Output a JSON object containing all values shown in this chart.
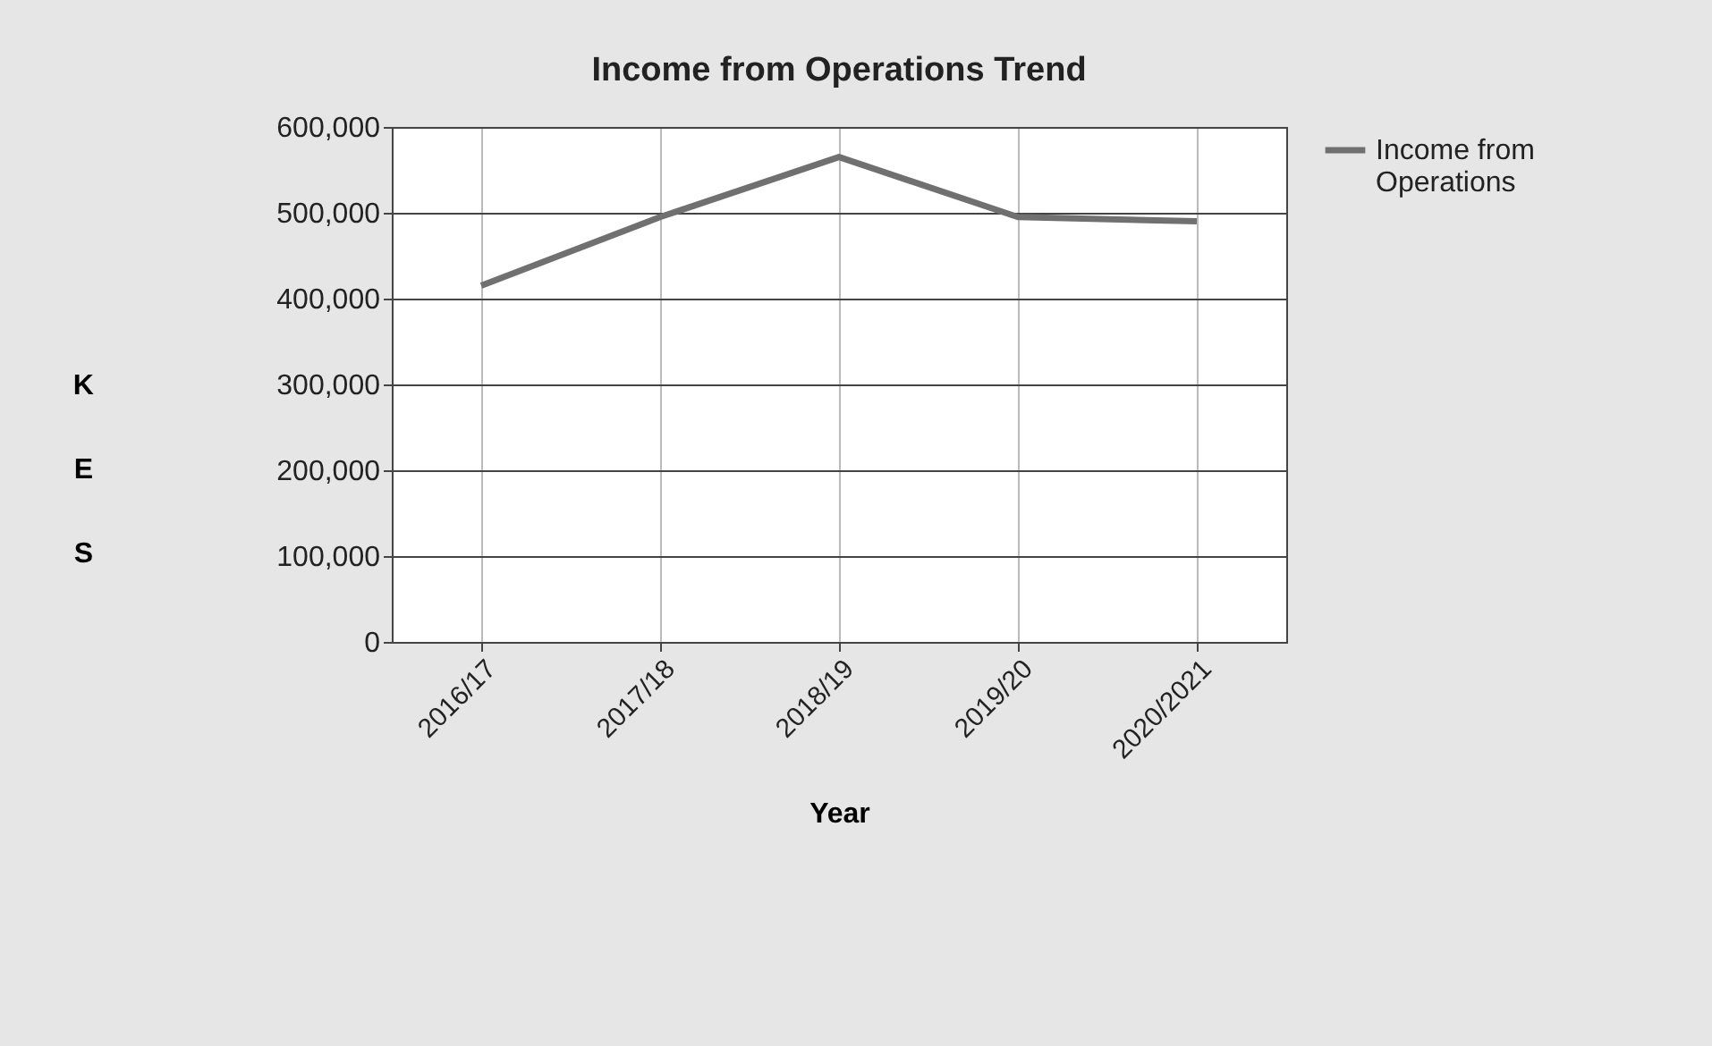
{
  "chart_data": {
    "type": "line",
    "title": "Income from Operations  Trend",
    "xlabel": "Year",
    "ylabel": "KES",
    "categories": [
      "2016/17",
      "2017/18",
      "2018/19",
      "2019/20",
      "2020/2021"
    ],
    "series": [
      {
        "name": "Income from Operations",
        "color": "#707070",
        "values": [
          415000,
          495000,
          565000,
          495000,
          490000
        ]
      }
    ],
    "ylim": [
      0,
      600000
    ],
    "yticks": [
      0,
      {
        "value": 100000,
        "label": "100,000"
      },
      {
        "value": 200000,
        "label": "200,000"
      },
      {
        "value": 300000,
        "label": "300,000"
      },
      {
        "value": 400000,
        "label": "400,000"
      },
      {
        "value": 500000,
        "label": "500,000"
      },
      {
        "value": 600000,
        "label": "600,000"
      }
    ],
    "grid": true,
    "legend": "right",
    "marker": "none",
    "line_style": "solid"
  }
}
